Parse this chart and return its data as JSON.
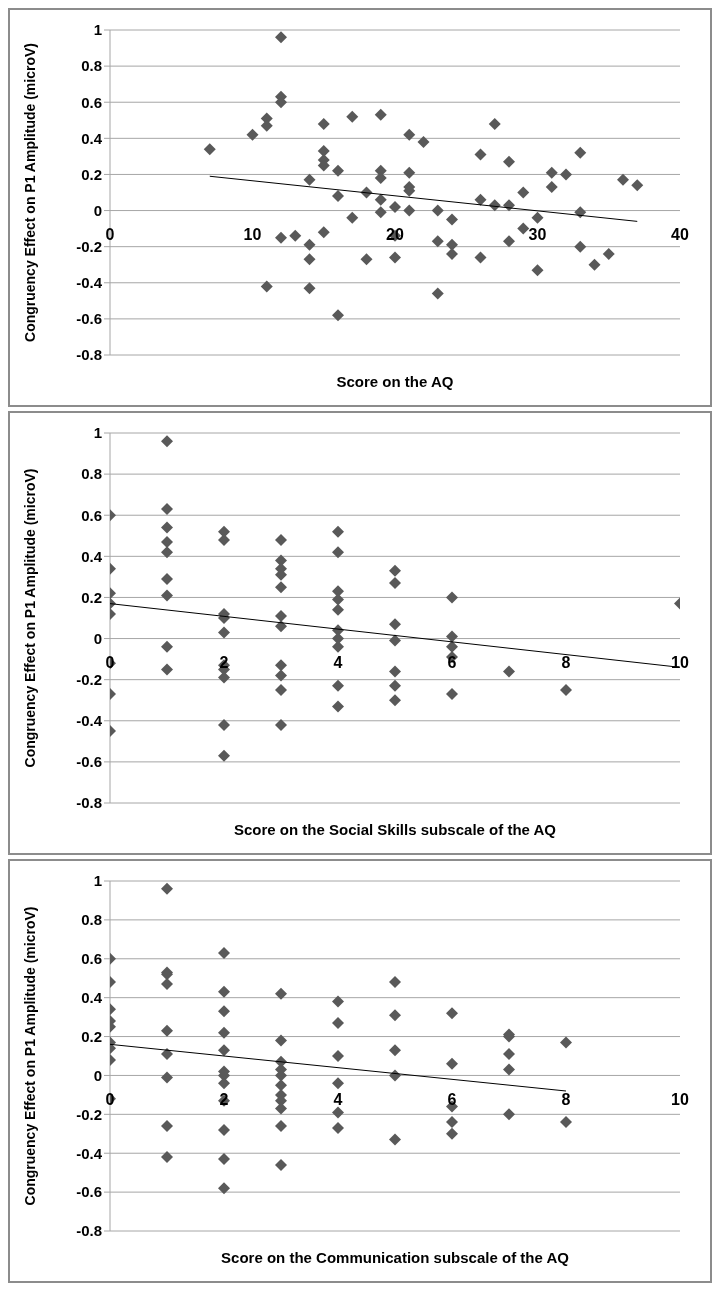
{
  "chart_data": [
    {
      "type": "scatter",
      "xlabel": "Score on the AQ",
      "ylabel": "Congruency Effect on P1 Amplitude (microV)",
      "xlim": [
        0,
        40
      ],
      "xticks": [
        0,
        10,
        20,
        30,
        40
      ],
      "ylim": [
        -0.8,
        1
      ],
      "yticks": [
        -0.8,
        -0.6,
        -0.4,
        -0.2,
        0,
        0.2,
        0.4,
        0.6,
        0.8,
        1
      ],
      "grid": "y",
      "marker": "diamond",
      "series": [
        {
          "type": "scatter",
          "color": "#595959",
          "x": [
            7,
            10,
            11,
            11,
            11,
            12,
            12,
            12,
            12,
            13,
            14,
            14,
            14,
            14,
            15,
            15,
            15,
            15,
            15,
            16,
            16,
            16,
            17,
            17,
            18,
            18,
            19,
            19,
            19,
            19,
            19,
            20,
            20,
            20,
            21,
            21,
            21,
            21,
            21,
            22,
            23,
            23,
            23,
            24,
            24,
            24,
            26,
            26,
            26,
            27,
            27,
            28,
            28,
            28,
            29,
            29,
            30,
            30,
            31,
            31,
            32,
            33,
            33,
            33,
            34,
            35,
            36,
            37
          ],
          "values": [
            0.34,
            0.42,
            0.51,
            0.47,
            -0.42,
            0.96,
            0.63,
            0.6,
            -0.15,
            -0.14,
            0.17,
            -0.19,
            -0.27,
            -0.43,
            0.48,
            0.33,
            0.28,
            0.25,
            -0.12,
            0.22,
            0.08,
            -0.58,
            0.52,
            -0.04,
            0.1,
            -0.27,
            0.53,
            0.22,
            0.18,
            0.06,
            -0.01,
            0.02,
            -0.14,
            -0.26,
            0.42,
            0.21,
            0.13,
            0.11,
            0,
            0.38,
            0,
            -0.17,
            -0.46,
            -0.05,
            -0.19,
            -0.24,
            0.31,
            0.06,
            -0.26,
            0.48,
            0.03,
            0.27,
            0.03,
            -0.17,
            0.1,
            -0.1,
            -0.04,
            -0.33,
            0.21,
            0.13,
            0.2,
            0.32,
            -0.01,
            -0.2,
            -0.3,
            -0.24,
            0.17,
            0.14
          ]
        },
        {
          "type": "line",
          "color": "#000000",
          "marker": "none",
          "x": [
            7,
            37
          ],
          "values": [
            0.19,
            -0.06
          ]
        }
      ]
    },
    {
      "type": "scatter",
      "xlabel": "Score on the Social Skills subscale of the AQ",
      "ylabel": "Congruency Effect on P1 Amplitude (microV)",
      "xlim": [
        0,
        10
      ],
      "xticks": [
        0,
        2,
        4,
        6,
        8,
        10
      ],
      "ylim": [
        -0.8,
        1
      ],
      "yticks": [
        -0.8,
        -0.6,
        -0.4,
        -0.2,
        0,
        0.2,
        0.4,
        0.6,
        0.8,
        1
      ],
      "grid": "y",
      "marker": "diamond",
      "series": [
        {
          "type": "scatter",
          "color": "#595959",
          "x": [
            0,
            0,
            0,
            0,
            0,
            0,
            0,
            0,
            1,
            1,
            1,
            1,
            1,
            1,
            1,
            1,
            1,
            2,
            2,
            2,
            2,
            2,
            2,
            2,
            2,
            2,
            2,
            3,
            3,
            3,
            3,
            3,
            3,
            3,
            3,
            3,
            3,
            3,
            4,
            4,
            4,
            4,
            4,
            4,
            4,
            4,
            4,
            4,
            5,
            5,
            5,
            5,
            5,
            5,
            5,
            6,
            6,
            6,
            6,
            6,
            7,
            8,
            10
          ],
          "values": [
            0.6,
            0.34,
            0.22,
            0.17,
            0.12,
            -0.12,
            -0.27,
            -0.45,
            0.96,
            0.63,
            0.54,
            0.47,
            0.42,
            0.29,
            0.21,
            -0.04,
            -0.15,
            0.52,
            0.48,
            0.12,
            0.1,
            0.03,
            -0.13,
            -0.15,
            -0.19,
            -0.42,
            -0.57,
            0.48,
            0.38,
            0.34,
            0.31,
            0.25,
            0.11,
            0.06,
            -0.13,
            -0.18,
            -0.25,
            -0.42,
            0.52,
            0.42,
            0.23,
            0.19,
            0.14,
            0.04,
            0,
            -0.04,
            -0.23,
            -0.33,
            0.33,
            0.27,
            0.07,
            -0.01,
            -0.16,
            -0.23,
            -0.3,
            0.2,
            0.01,
            -0.04,
            -0.09,
            -0.27,
            -0.16,
            -0.25,
            0.17
          ]
        },
        {
          "type": "line",
          "color": "#000000",
          "marker": "none",
          "x": [
            0,
            10
          ],
          "values": [
            0.17,
            -0.14
          ]
        }
      ]
    },
    {
      "type": "scatter",
      "xlabel": "Score on the Communication subscale of the AQ",
      "ylabel": "Congruency Effect on P1 Amplitude (microV)",
      "xlim": [
        0,
        10
      ],
      "xticks": [
        0,
        2,
        4,
        6,
        8,
        10
      ],
      "ylim": [
        -0.8,
        1
      ],
      "yticks": [
        -0.8,
        -0.6,
        -0.4,
        -0.2,
        0,
        0.2,
        0.4,
        0.6,
        0.8,
        1
      ],
      "grid": "y",
      "marker": "diamond",
      "series": [
        {
          "type": "scatter",
          "color": "#595959",
          "x": [
            0,
            0,
            0,
            0,
            0,
            0,
            0,
            0,
            0,
            1,
            1,
            1,
            1,
            1,
            1,
            1,
            1,
            1,
            2,
            2,
            2,
            2,
            2,
            2,
            2,
            2,
            2,
            2,
            2,
            2,
            3,
            3,
            3,
            3,
            3,
            3,
            3,
            3,
            3,
            3,
            3,
            4,
            4,
            4,
            4,
            4,
            4,
            5,
            5,
            5,
            5,
            5,
            6,
            6,
            6,
            6,
            6,
            7,
            7,
            7,
            7,
            7,
            8,
            8
          ],
          "values": [
            0.6,
            0.48,
            0.34,
            0.28,
            0.25,
            0.17,
            0.14,
            0.08,
            -0.12,
            0.96,
            0.53,
            0.52,
            0.47,
            0.23,
            0.11,
            -0.01,
            -0.26,
            -0.42,
            0.63,
            0.43,
            0.33,
            0.22,
            0.13,
            0.02,
            0,
            -0.04,
            -0.13,
            -0.28,
            -0.43,
            -0.58,
            0.42,
            0.18,
            0.07,
            0.03,
            0,
            -0.05,
            -0.1,
            -0.13,
            -0.17,
            -0.26,
            -0.46,
            0.38,
            0.27,
            0.1,
            -0.04,
            -0.19,
            -0.27,
            0.48,
            0.31,
            0.13,
            0,
            -0.33,
            0.32,
            0.06,
            -0.16,
            -0.24,
            -0.3,
            0.21,
            0.2,
            0.11,
            0.03,
            -0.2,
            0.17,
            -0.24
          ]
        },
        {
          "type": "line",
          "color": "#000000",
          "marker": "none",
          "x": [
            0,
            8
          ],
          "values": [
            0.16,
            -0.08
          ]
        }
      ]
    }
  ]
}
